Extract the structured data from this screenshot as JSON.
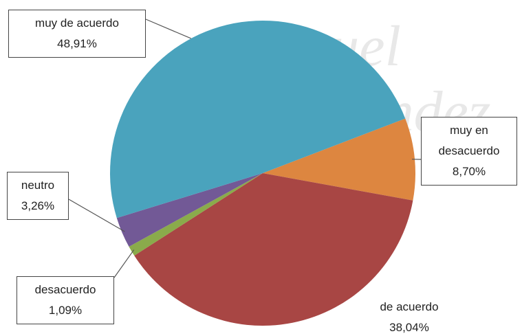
{
  "chart_data": {
    "type": "pie",
    "categories": [
      "muy en desacuerdo",
      "de acuerdo",
      "desacuerdo",
      "neutro",
      "muy de acuerdo"
    ],
    "values": [
      8.7,
      38.04,
      1.09,
      3.26,
      48.91
    ],
    "value_labels": [
      "8,70%",
      "38,04%",
      "1,09%",
      "3,26%",
      "48,91%"
    ],
    "colors": [
      "#dd8640",
      "#a84644",
      "#8aab4b",
      "#725996",
      "#4aa3bd"
    ],
    "start_angle": -21
  }
}
